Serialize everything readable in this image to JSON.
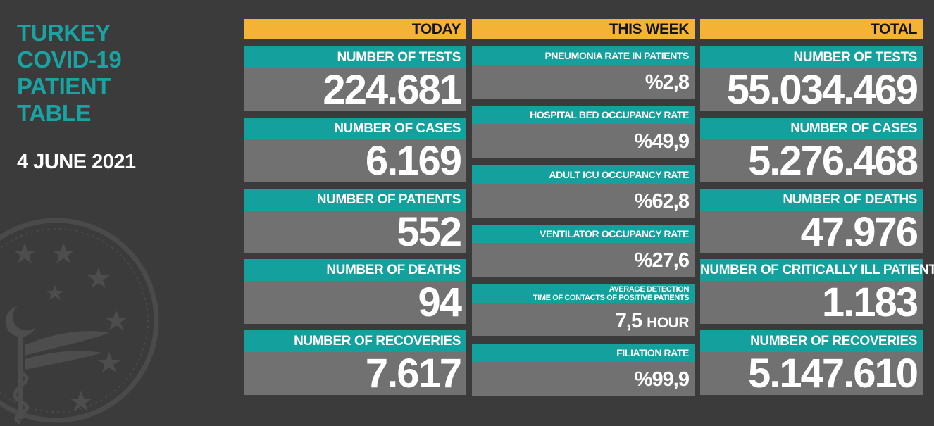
{
  "title": {
    "line1": "TURKEY",
    "line2": "COVID-19",
    "line3": "PATIENT",
    "line4": "TABLE"
  },
  "date": "4 JUNE 2021",
  "colors": {
    "background": "#3b3b3b",
    "teal": "#14a09c",
    "header": "#f5b335",
    "value_box": "#717171"
  },
  "today": {
    "header": "TODAY",
    "items": [
      {
        "label": "NUMBER OF TESTS",
        "value": "224.681"
      },
      {
        "label": "NUMBER OF CASES",
        "value": "6.169"
      },
      {
        "label": "NUMBER OF PATIENTS",
        "value": "552"
      },
      {
        "label": "NUMBER OF DEATHS",
        "value": "94"
      },
      {
        "label": "NUMBER OF RECOVERIES",
        "value": "7.617"
      }
    ]
  },
  "week": {
    "header": "THIS WEEK",
    "items": [
      {
        "label": "PNEUMONIA RATE IN PATIENTS",
        "value": "%2,8"
      },
      {
        "label": "HOSPITAL BED OCCUPANCY RATE",
        "value": "%49,9"
      },
      {
        "label": "ADULT ICU OCCUPANCY RATE",
        "value": "%62,8"
      },
      {
        "label": "VENTILATOR OCCUPANCY RATE",
        "value": "%27,6"
      },
      {
        "label_line1": "AVERAGE DETECTION",
        "label_line2": "TIME OF CONTACTS OF POSITIVE PATIENTS",
        "value": "7,5",
        "unit": "HOUR"
      },
      {
        "label": "FILIATION RATE",
        "value": "%99,9"
      }
    ]
  },
  "total": {
    "header": "TOTAL",
    "items": [
      {
        "label": "NUMBER OF TESTS",
        "value": "55.034.469"
      },
      {
        "label": "NUMBER OF CASES",
        "value": "5.276.468"
      },
      {
        "label": "NUMBER OF DEATHS",
        "value": "47.976"
      },
      {
        "label": "NUMBER OF CRITICALLY ILL PATIENTS",
        "value": "1.183"
      },
      {
        "label": "NUMBER OF RECOVERIES",
        "value": "5.147.610"
      }
    ]
  }
}
